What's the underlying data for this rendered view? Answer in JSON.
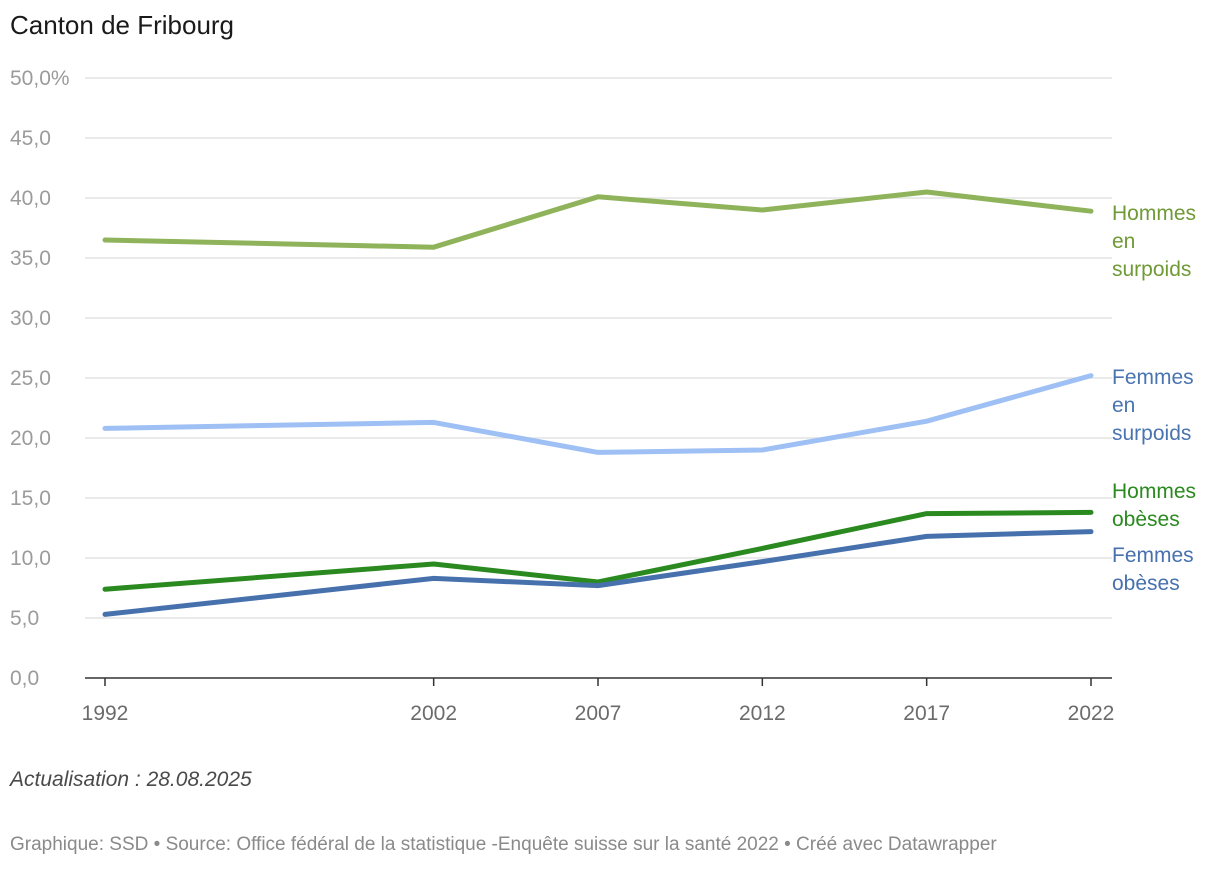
{
  "title": "Canton de Fribourg",
  "note": "Actualisation : 28.08.2025",
  "footer": "Graphique: SSD • Source: Office fédéral de la statistique -Enquête suisse sur la santé 2022 • Créé avec Datawrapper",
  "chart_data": {
    "type": "line",
    "title": "Canton de Fribourg",
    "xlabel": "",
    "ylabel": "",
    "x": [
      1992,
      2002,
      2007,
      2012,
      2017,
      2022
    ],
    "xticks": [
      "1992",
      "2002",
      "2007",
      "2012",
      "2017",
      "2022"
    ],
    "ylim": [
      0,
      50
    ],
    "yticks": [
      {
        "value": 0,
        "label": "0,0"
      },
      {
        "value": 5,
        "label": "5,0"
      },
      {
        "value": 10,
        "label": "10,0"
      },
      {
        "value": 15,
        "label": "15,0"
      },
      {
        "value": 20,
        "label": "20,0"
      },
      {
        "value": 25,
        "label": "25,0"
      },
      {
        "value": 30,
        "label": "30,0"
      },
      {
        "value": 35,
        "label": "35,0"
      },
      {
        "value": 40,
        "label": "40,0"
      },
      {
        "value": 45,
        "label": "45,0"
      },
      {
        "value": 50,
        "label": "50,0%"
      }
    ],
    "grid": true,
    "series": [
      {
        "name": "Hommes en surpoids",
        "label_lines": [
          "Hommes",
          "en",
          "surpoids"
        ],
        "color": "#8fb35a",
        "label_color": "#6f9a36",
        "values": [
          36.5,
          35.9,
          40.1,
          39.0,
          40.5,
          38.9
        ]
      },
      {
        "name": "Femmes en surpoids",
        "label_lines": [
          "Femmes",
          "en",
          "surpoids"
        ],
        "color": "#9fc0f5",
        "label_color": "#4a74b0",
        "values": [
          20.8,
          21.3,
          18.8,
          19.0,
          21.4,
          25.2
        ]
      },
      {
        "name": "Hommes obèses",
        "label_lines": [
          "Hommes",
          "obèses"
        ],
        "color": "#2a8a1f",
        "label_color": "#2a8a1f",
        "values": [
          7.4,
          9.5,
          8.0,
          10.8,
          13.7,
          13.8
        ]
      },
      {
        "name": "Femmes obèses",
        "label_lines": [
          "Femmes",
          "obèses"
        ],
        "color": "#4771ad",
        "label_color": "#4771ad",
        "values": [
          5.3,
          8.3,
          7.7,
          9.7,
          11.8,
          12.2
        ]
      }
    ]
  }
}
